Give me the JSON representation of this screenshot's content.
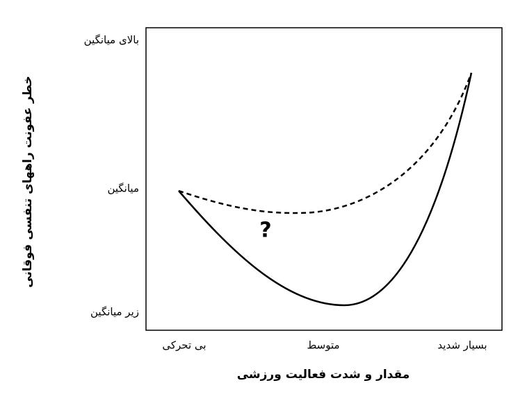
{
  "axes": {
    "y_title": "خطر عفونت راههای تنفسی فوقانی",
    "y_labels": [
      "بالای میانگین",
      "میانگین",
      "زیر میانگین"
    ],
    "x_title": "مقدار و شدت فعالیت ورزشی",
    "x_labels": [
      "بی تحرکی",
      "متوسط",
      "بسیار شدید"
    ]
  },
  "annotation": "?"
}
